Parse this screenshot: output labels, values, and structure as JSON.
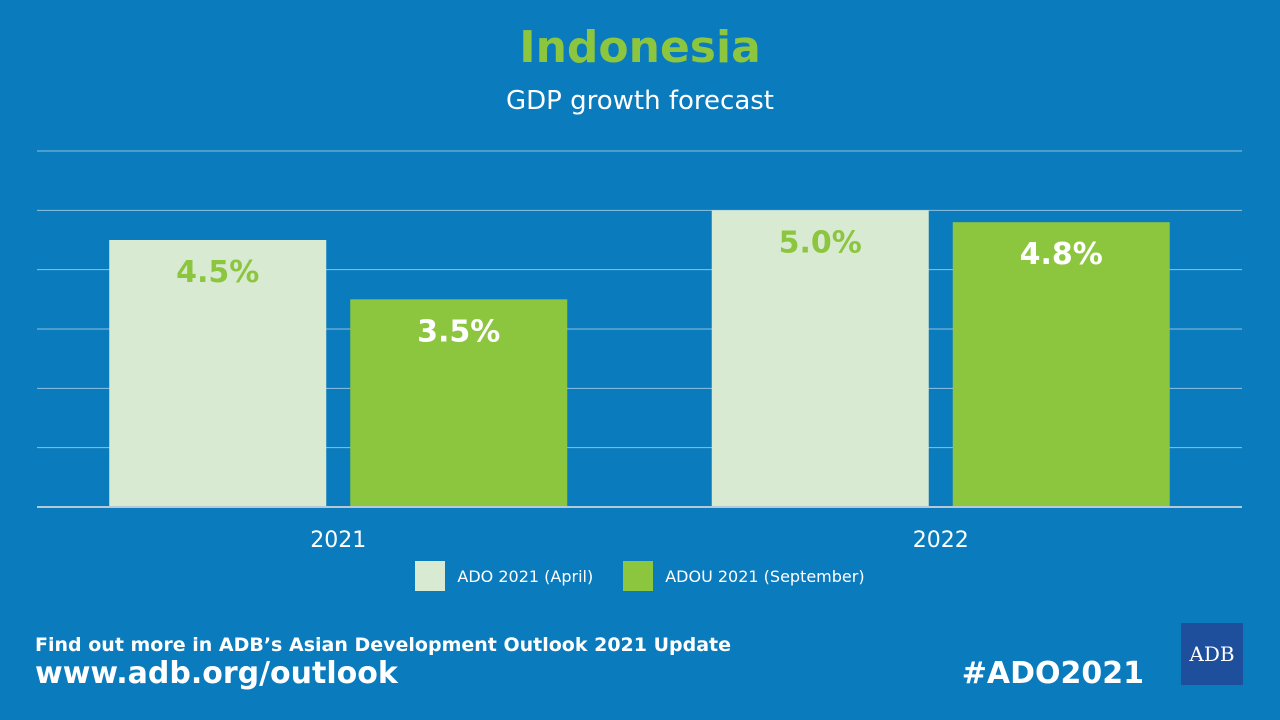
{
  "chart_data": {
    "type": "bar",
    "title": "Indonesia",
    "subtitle": "GDP growth forecast",
    "categories": [
      "2021",
      "2022"
    ],
    "series": [
      {
        "name": "ADO 2021 (April)",
        "values": [
          4.5,
          5.0
        ],
        "labels": [
          "4.5%",
          "5.0%"
        ],
        "color": "#d9ead3",
        "label_color": "#8cc63f"
      },
      {
        "name": "ADOU 2021 (September)",
        "values": [
          3.5,
          4.8
        ],
        "labels": [
          "3.5%",
          "4.8%"
        ],
        "color": "#8cc63f",
        "label_color": "#ffffff"
      }
    ],
    "ylim": [
      0,
      6
    ],
    "grid": true,
    "legend": "bottom-center"
  },
  "footer": {
    "text": "Find out more in ADB’s Asian Development Outlook 2021 Update",
    "url": "www.adb.org/outlook",
    "hashtag": "#ADO2021"
  },
  "logo": {
    "text": "ADB"
  },
  "colors": {
    "background": "#0a7bbd",
    "accent": "#8cc63f",
    "logo_bg": "#1e4f9c"
  }
}
